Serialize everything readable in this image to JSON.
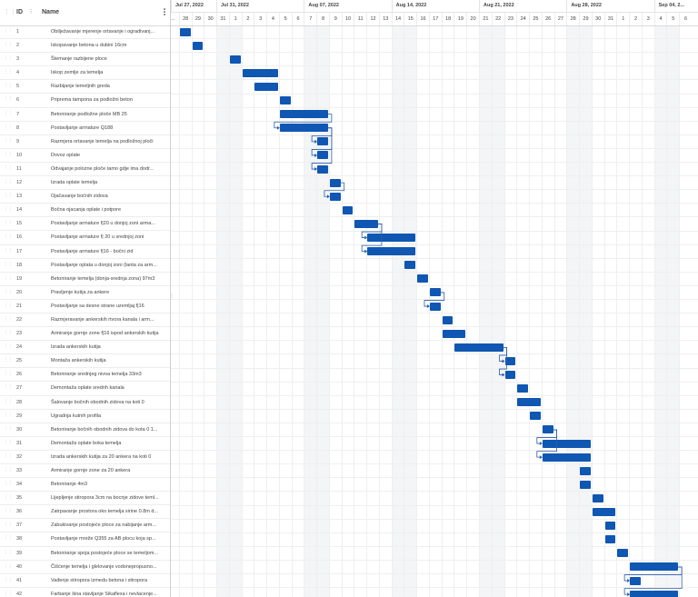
{
  "colors": {
    "bar": "#0f57b2",
    "link": "#2a5ea8"
  },
  "grid": {
    "header": {
      "id_label": "ID",
      "name_label": "Name"
    },
    "rows": [
      {
        "id": "1",
        "name": "Obilježavanje mjerenje ortavanje i ogradivanj..."
      },
      {
        "id": "2",
        "name": "Iskopavanje betona u dubini 16cm"
      },
      {
        "id": "3",
        "name": "Štemanje razbijene ploce"
      },
      {
        "id": "4",
        "name": "Iskop zemlje za temelja"
      },
      {
        "id": "5",
        "name": "Razbijanje temeljnih greda"
      },
      {
        "id": "6",
        "name": "Priprema tampona za podložni beton"
      },
      {
        "id": "7",
        "name": "Betoniranje podložne ploče MB 25"
      },
      {
        "id": "8",
        "name": "Postavljanje armature Q188"
      },
      {
        "id": "9",
        "name": "Razmjera ortavanje temelja na podložnoj ploči"
      },
      {
        "id": "10",
        "name": "Dovoz oplate"
      },
      {
        "id": "11",
        "name": "Odvajanje polozne ploče tamo gdje ima dodr..."
      },
      {
        "id": "12",
        "name": "Izrada oplate temelja"
      },
      {
        "id": "13",
        "name": "Ojačavanje bočnih zidova"
      },
      {
        "id": "14",
        "name": "Bočna ojacanja oplate i potpore"
      },
      {
        "id": "15",
        "name": "Postavljanje armature f|20 u donjoj zoni arma..."
      },
      {
        "id": "16",
        "name": "Postavljanje armature f| 20 u srednjoj zoni"
      },
      {
        "id": "17",
        "name": "Postavljanje armature f|16 - bočni zid"
      },
      {
        "id": "18",
        "name": "Postavljanje oplata u donjoj zoni (lanta za arm..."
      },
      {
        "id": "19",
        "name": "Betoniranje temelja (donja-srednja zona) 97m3"
      },
      {
        "id": "20",
        "name": "Pravljenje kutija za ankere"
      },
      {
        "id": "21",
        "name": "Postavljanje sa desne strane uzemljaj f|16"
      },
      {
        "id": "22",
        "name": "Razmjeravanje ankerskih rtvora kanala i arm..."
      },
      {
        "id": "23",
        "name": "Armiranje gornje zone f|16 ispod ankerskih kutija"
      },
      {
        "id": "24",
        "name": "Izrada ankerskih kutija"
      },
      {
        "id": "25",
        "name": "Montaža ankerskih kutija"
      },
      {
        "id": "26",
        "name": "Betoniranje srednjeg nivoa temelja 33m3"
      },
      {
        "id": "27",
        "name": "Demontaža oplate srednh kanala"
      },
      {
        "id": "28",
        "name": "Šalovanje bočnih obodnih zidova na koti 0"
      },
      {
        "id": "29",
        "name": "Ugradnja kutnih profila"
      },
      {
        "id": "30",
        "name": "Betoniranje bočnih obodnih zidova do kota 0 1..."
      },
      {
        "id": "31",
        "name": "Demontaža oplate boka temelja"
      },
      {
        "id": "32",
        "name": "Izrada ankerskih kutija za 20 ankera na koti 0"
      },
      {
        "id": "33",
        "name": "Armiranje gornje zone za 20 ankera"
      },
      {
        "id": "34",
        "name": "Betoniranje 4m3"
      },
      {
        "id": "35",
        "name": "Lijepljenje stiropora 3cm na bocnje zidove teml..."
      },
      {
        "id": "36",
        "name": "Zatrpavanje prostora oko temelja sirine 0.8m d..."
      },
      {
        "id": "37",
        "name": "Zabukivanje postojeće ploce za nabijanje arm..."
      },
      {
        "id": "38",
        "name": "Postavljanje mreže Q355 za AB plocu koja sp..."
      },
      {
        "id": "39",
        "name": "Betoniranje spoja postojeće ploce se temeljom..."
      },
      {
        "id": "40",
        "name": "Čišćenje temelja i glelovanje vodonepropusno..."
      },
      {
        "id": "41",
        "name": "Vađenje stiropora izmedu betona i stiropora"
      },
      {
        "id": "42",
        "name": "Farbanje šina stavljanje Sikaflexa i nevlacenje..."
      }
    ]
  },
  "timeline": {
    "weeks": [
      "Jul 27, 2022",
      "Jul 31, 2022",
      "Aug 07, 2022",
      "Aug 14, 2022",
      "Aug 21, 2022",
      "Aug 28, 2022",
      "Sep 04, 2..."
    ],
    "days": [
      "...",
      "28",
      "29",
      "30",
      "31",
      "1",
      "2",
      "3",
      "4",
      "5",
      "6",
      "7",
      "8",
      "9",
      "10",
      "11",
      "12",
      "13",
      "14",
      "15",
      "16",
      "17",
      "18",
      "19",
      "20",
      "21",
      "22",
      "23",
      "24",
      "25",
      "26",
      "27",
      "28",
      "29",
      "30",
      "31",
      "1",
      "2",
      "3",
      "4",
      "5",
      "6"
    ],
    "weekend_day_indices": [
      4,
      5,
      11,
      12,
      18,
      19,
      25,
      26,
      32,
      33,
      39,
      40
    ]
  },
  "chart_data": {
    "type": "gantt",
    "unit": "day index (0 = column before Jul 28, 2022)",
    "tasks": [
      {
        "id": 1,
        "start": 1,
        "duration": 1
      },
      {
        "id": 2,
        "start": 2,
        "duration": 1
      },
      {
        "id": 3,
        "start": 5,
        "duration": 1
      },
      {
        "id": 4,
        "start": 6,
        "duration": 3
      },
      {
        "id": 5,
        "start": 7,
        "duration": 2
      },
      {
        "id": 6,
        "start": 9,
        "duration": 1
      },
      {
        "id": 7,
        "start": 9,
        "duration": 4
      },
      {
        "id": 8,
        "start": 9,
        "duration": 4
      },
      {
        "id": 9,
        "start": 12,
        "duration": 1
      },
      {
        "id": 10,
        "start": 12,
        "duration": 1
      },
      {
        "id": 11,
        "start": 12,
        "duration": 1
      },
      {
        "id": 12,
        "start": 13,
        "duration": 1
      },
      {
        "id": 13,
        "start": 13,
        "duration": 1
      },
      {
        "id": 14,
        "start": 14,
        "duration": 1
      },
      {
        "id": 15,
        "start": 15,
        "duration": 2
      },
      {
        "id": 16,
        "start": 16,
        "duration": 4
      },
      {
        "id": 17,
        "start": 16,
        "duration": 4
      },
      {
        "id": 18,
        "start": 19,
        "duration": 1
      },
      {
        "id": 19,
        "start": 20,
        "duration": 1
      },
      {
        "id": 20,
        "start": 21,
        "duration": 1
      },
      {
        "id": 21,
        "start": 21,
        "duration": 1
      },
      {
        "id": 22,
        "start": 22,
        "duration": 1
      },
      {
        "id": 23,
        "start": 22,
        "duration": 2
      },
      {
        "id": 24,
        "start": 23,
        "duration": 4
      },
      {
        "id": 25,
        "start": 27,
        "duration": 1
      },
      {
        "id": 26,
        "start": 27,
        "duration": 1
      },
      {
        "id": 27,
        "start": 28,
        "duration": 1
      },
      {
        "id": 28,
        "start": 28,
        "duration": 2
      },
      {
        "id": 29,
        "start": 29,
        "duration": 1
      },
      {
        "id": 30,
        "start": 30,
        "duration": 1
      },
      {
        "id": 31,
        "start": 30,
        "duration": 4
      },
      {
        "id": 32,
        "start": 30,
        "duration": 4
      },
      {
        "id": 33,
        "start": 33,
        "duration": 1
      },
      {
        "id": 34,
        "start": 33,
        "duration": 1
      },
      {
        "id": 35,
        "start": 34,
        "duration": 1
      },
      {
        "id": 36,
        "start": 34,
        "duration": 2
      },
      {
        "id": 37,
        "start": 35,
        "duration": 1
      },
      {
        "id": 38,
        "start": 35,
        "duration": 1
      },
      {
        "id": 39,
        "start": 36,
        "duration": 1
      },
      {
        "id": 40,
        "start": 37,
        "duration": 4
      },
      {
        "id": 41,
        "start": 37,
        "duration": 1
      },
      {
        "id": 42,
        "start": 37,
        "duration": 4
      }
    ],
    "dependencies": [
      [
        7,
        8
      ],
      [
        8,
        9
      ],
      [
        8,
        10
      ],
      [
        8,
        11
      ],
      [
        12,
        13
      ],
      [
        15,
        16
      ],
      [
        15,
        17
      ],
      [
        20,
        21
      ],
      [
        24,
        25
      ],
      [
        24,
        26
      ],
      [
        30,
        31
      ],
      [
        30,
        32
      ],
      [
        40,
        41
      ],
      [
        40,
        42
      ]
    ]
  }
}
